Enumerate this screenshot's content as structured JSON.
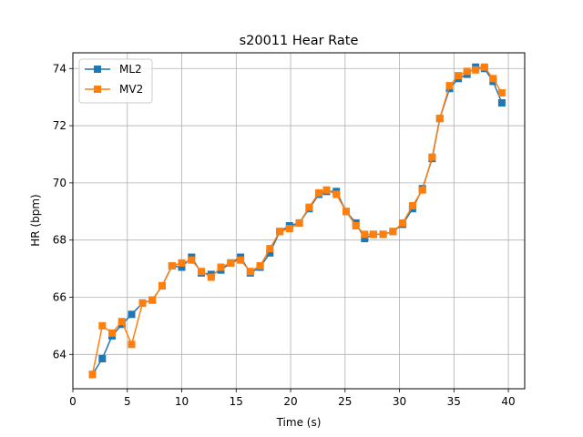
{
  "chart_data": {
    "type": "line",
    "title": "s20011 Hear Rate",
    "xlabel": "Time (s)",
    "ylabel": "HR (bpm)",
    "xlim": [
      0,
      41.5
    ],
    "ylim": [
      62.8,
      74.55
    ],
    "xticks": [
      0,
      5,
      10,
      15,
      20,
      25,
      30,
      35,
      40
    ],
    "yticks": [
      64,
      66,
      68,
      70,
      72,
      74
    ],
    "xtick_labels": [
      "0",
      "5",
      "10",
      "15",
      "20",
      "25",
      "30",
      "35",
      "40"
    ],
    "ytick_labels": [
      "64",
      "66",
      "68",
      "70",
      "72",
      "74"
    ],
    "grid": true,
    "legend_position": "upper-left",
    "series": [
      {
        "name": "ML2",
        "color": "#1f77b4",
        "marker": "square",
        "x": [
          1.8,
          2.7,
          3.6,
          4.5,
          5.4,
          6.4,
          7.3,
          8.2,
          9.1,
          10.0,
          10.9,
          11.8,
          12.7,
          13.6,
          14.5,
          15.4,
          16.3,
          17.2,
          18.1,
          19.0,
          19.9,
          20.8,
          21.7,
          22.6,
          23.3,
          24.2,
          25.1,
          26.0,
          26.8,
          27.6,
          28.5,
          29.4,
          30.3,
          31.2,
          32.1,
          33.0,
          33.7,
          34.6,
          35.4,
          36.2,
          37.0,
          37.8,
          38.6,
          39.4
        ],
        "y": [
          63.3,
          63.85,
          64.65,
          65.05,
          65.4,
          65.8,
          65.9,
          66.4,
          67.1,
          67.05,
          67.4,
          66.85,
          66.8,
          66.95,
          67.2,
          67.4,
          66.85,
          67.05,
          67.55,
          68.3,
          68.5,
          68.6,
          69.1,
          69.6,
          69.7,
          69.7,
          69.0,
          68.6,
          68.05,
          68.2,
          68.2,
          68.3,
          68.55,
          69.1,
          69.8,
          70.85,
          72.25,
          73.3,
          73.65,
          73.8,
          74.05,
          74.0,
          73.55,
          72.8
        ]
      },
      {
        "name": "MV2",
        "color": "#ff7f0e",
        "marker": "square",
        "x": [
          1.8,
          2.7,
          3.6,
          4.5,
          5.4,
          6.4,
          7.3,
          8.2,
          9.1,
          10.0,
          10.9,
          11.8,
          12.7,
          13.6,
          14.5,
          15.4,
          16.3,
          17.2,
          18.1,
          19.0,
          19.9,
          20.8,
          21.7,
          22.6,
          23.3,
          24.2,
          25.1,
          26.0,
          26.8,
          27.6,
          28.5,
          29.4,
          30.3,
          31.2,
          32.1,
          33.0,
          33.7,
          34.6,
          35.4,
          36.2,
          37.0,
          37.8,
          38.6,
          39.4
        ],
        "y": [
          63.3,
          65.0,
          64.75,
          65.15,
          64.35,
          65.8,
          65.9,
          66.4,
          67.1,
          67.2,
          67.3,
          66.9,
          66.7,
          67.05,
          67.2,
          67.3,
          66.9,
          67.1,
          67.7,
          68.3,
          68.4,
          68.6,
          69.15,
          69.65,
          69.75,
          69.6,
          69.0,
          68.5,
          68.2,
          68.2,
          68.2,
          68.3,
          68.6,
          69.2,
          69.75,
          70.9,
          72.25,
          73.4,
          73.75,
          73.9,
          73.95,
          74.05,
          73.65,
          73.15
        ]
      }
    ]
  }
}
